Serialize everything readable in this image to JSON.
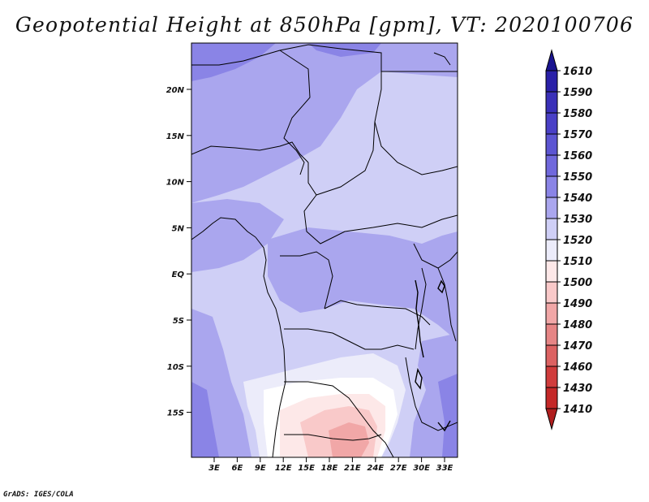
{
  "title": "Geopotential Height at 850hPa [gpm], VT: 2020100706",
  "credit": "GrADS: IGES/COLA",
  "map": {
    "lat_labels": [
      "20N",
      "15N",
      "10N",
      "5N",
      "EQ",
      "5S",
      "10S",
      "15S"
    ],
    "lon_labels": [
      "3E",
      "6E",
      "9E",
      "12E",
      "15E",
      "18E",
      "21E",
      "24E",
      "27E",
      "30E",
      "33E"
    ]
  },
  "colorbar": {
    "levels": [
      "1610",
      "1590",
      "1580",
      "1570",
      "1560",
      "1550",
      "1540",
      "1530",
      "1520",
      "1510",
      "1500",
      "1490",
      "1480",
      "1470",
      "1460",
      "1430",
      "1410"
    ],
    "colors": [
      "#1a1490",
      "#2a20a8",
      "#3a30b8",
      "#4a40c6",
      "#5c55d2",
      "#7068dc",
      "#8a84e6",
      "#aaa6ee",
      "#cfcff6",
      "#ececfa",
      "#fde8e8",
      "#f9c9c9",
      "#f1a7a7",
      "#e68585",
      "#dc6262",
      "#d03c3c",
      "#c42828",
      "#b01e1e"
    ]
  }
}
